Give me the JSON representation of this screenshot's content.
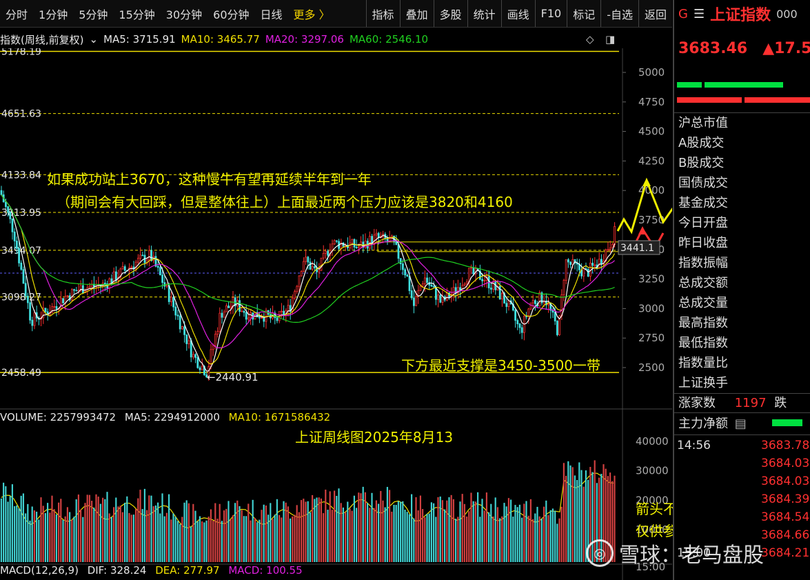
{
  "toolbar": {
    "timeframes": [
      "分时",
      "1分钟",
      "5分钟",
      "15分钟",
      "30分钟",
      "60分钟",
      "日线",
      "更多 〉"
    ],
    "tools": [
      "指标",
      "叠加",
      "多股",
      "统计",
      "画线",
      "F10",
      "标记",
      "-自选",
      "返回"
    ]
  },
  "info_line": {
    "title": "指数(周线,前复权)",
    "ma5": "MA5: 3715.91",
    "ma10": "MA10: 3465.77",
    "ma20": "MA20: 3297.06",
    "ma60": "MA60: 2546.10"
  },
  "price_levels": [
    {
      "label": "5178.19",
      "value": 5178.19,
      "color": "#f0e000",
      "style": "solid"
    },
    {
      "label": "4651.63",
      "value": 4651.63,
      "color": "#f0e000",
      "style": "dash"
    },
    {
      "label": "4133.84",
      "value": 4133.84,
      "color": "#f0e000",
      "style": "dash"
    },
    {
      "label": "3813.95",
      "value": 3813.95,
      "color": "#f0e000",
      "style": "dash"
    },
    {
      "label": "3494.07",
      "value": 3494.07,
      "color": "#f0e000",
      "style": "dash"
    },
    {
      "label": "3098.27",
      "value": 3098.27,
      "color": "#f0e000",
      "style": "dash"
    },
    {
      "label": "2458.49",
      "value": 2458.49,
      "color": "#f0e000",
      "style": "solid"
    }
  ],
  "low_marker": "←2440.91",
  "price_tag": "3441.1",
  "price_axis": [
    "5000",
    "4750",
    "4500",
    "4250",
    "4000",
    "3750",
    "3500",
    "3250",
    "3000",
    "2750",
    "2500"
  ],
  "annotations": {
    "line1": "如果成功站上3670，这种慢牛有望再延续半年到一年",
    "line2": "（期间会有大回踩，但是整体往上）上面最近两个压力应该是3820和4160",
    "support": "下方最近支撑是3450-3500一带",
    "title": "上证周线图2025年8月13",
    "disclaimer1": "箭头不代表具体走势，",
    "disclaimer2": "仅供参考"
  },
  "volume_info": {
    "volume": "VOLUME: 2257993472",
    "ma5": "MA5: 2294912000",
    "ma10": "MA10: 1671586432"
  },
  "volume_axis": [
    "40000",
    "30000",
    "20000",
    "10000"
  ],
  "macd_info": {
    "label": "MACD(12,26,9)",
    "dif": "DIF: 328.24",
    "dea": "DEA: 277.97",
    "macd": "MACD: 100.55"
  },
  "right_panel": {
    "g_mark": "G",
    "menu_icon": "☰",
    "name": "上证指数",
    "code": "000",
    "price": "3683.46",
    "change": "▲17.5",
    "rows": [
      "沪总市值",
      "A股成交",
      "B股成交",
      "国债成交",
      "基金成交",
      "今日开盘",
      "昨日收盘",
      "指数振幅",
      "总成交额",
      "总成交量",
      "最高指数",
      "最低指数",
      "指数量比",
      "上证换手"
    ],
    "up_count_label": "涨家数",
    "up_count": "1197",
    "down_label": "跌",
    "main_flow": "主力净额",
    "ticks": [
      {
        "time": "14:56",
        "value": "3683.78"
      },
      {
        "time": "",
        "value": "3684.03"
      },
      {
        "time": "",
        "value": "3684.03"
      },
      {
        "time": "",
        "value": "3684.39"
      },
      {
        "time": "",
        "value": "3684.54"
      },
      {
        "time": "",
        "value": "3684.66"
      },
      {
        "time": "15:00",
        "value": "3684.21"
      }
    ]
  },
  "watermark": "雪球：老马盘股",
  "colors": {
    "up": "#ff3030",
    "down": "#40e0e0",
    "ma5": "#ffffff",
    "ma10": "#f0e000",
    "ma20": "#e020e0",
    "ma60": "#20d020"
  }
}
